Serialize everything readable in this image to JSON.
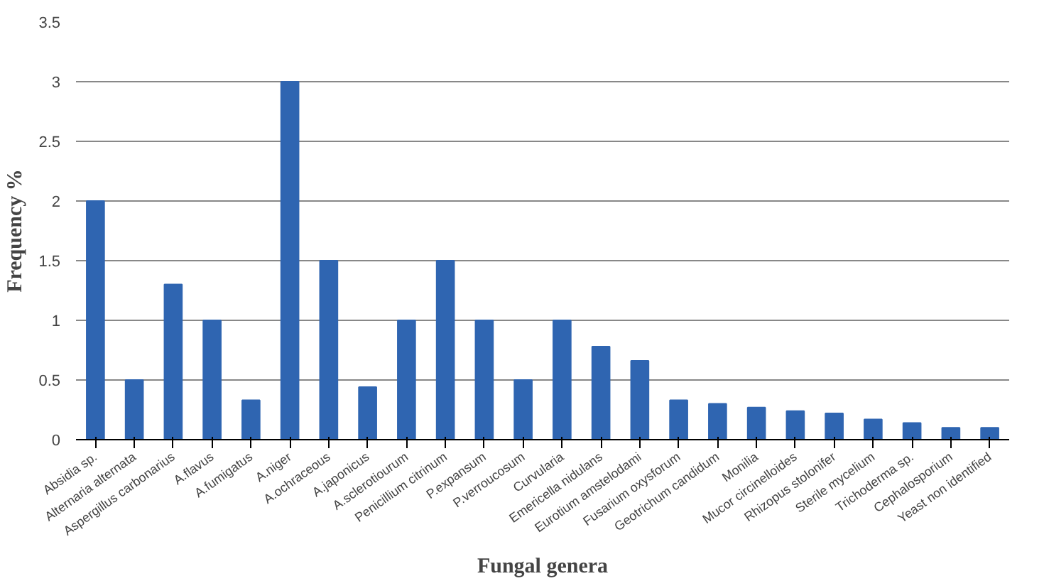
{
  "chart_data": {
    "type": "bar",
    "xlabel": "Fungal genera",
    "ylabel": "Frequency %",
    "categories": [
      "Absidia sp.",
      "Alternaria alternata",
      "Aspergillus carbonarius",
      "A.flavus",
      "A.fumigatus",
      "A.niger",
      "A.ochraceous",
      "A.japonicus",
      "A.sclerotiourum",
      "Penicillium citrinum",
      "P.expansum",
      "P.verroucosum",
      "Curvularia",
      "Emericella nidulans",
      "Eurotium amstelodami",
      "Fusarium oxysforum",
      "Geotrichum candidum",
      "Monilia",
      "Mucor circinelloides",
      "Rhizopus stolonifer",
      "Sterile mycelium",
      "Trichoderma sp.",
      "Cephalosporium",
      "Yeast non identified"
    ],
    "values": [
      2,
      0.5,
      1.3,
      1,
      0.33,
      3,
      1.5,
      0.44,
      1,
      1.5,
      1,
      0.5,
      1,
      0.78,
      0.66,
      0.33,
      0.3,
      0.27,
      0.24,
      0.22,
      0.17,
      0.14,
      0.1,
      0.1
    ],
    "color": "#2f65b1",
    "ylim": [
      0,
      3.5
    ],
    "yticks": [
      0,
      0.5,
      1,
      1.5,
      2,
      2.5,
      3,
      3.5
    ],
    "grid": "y"
  }
}
